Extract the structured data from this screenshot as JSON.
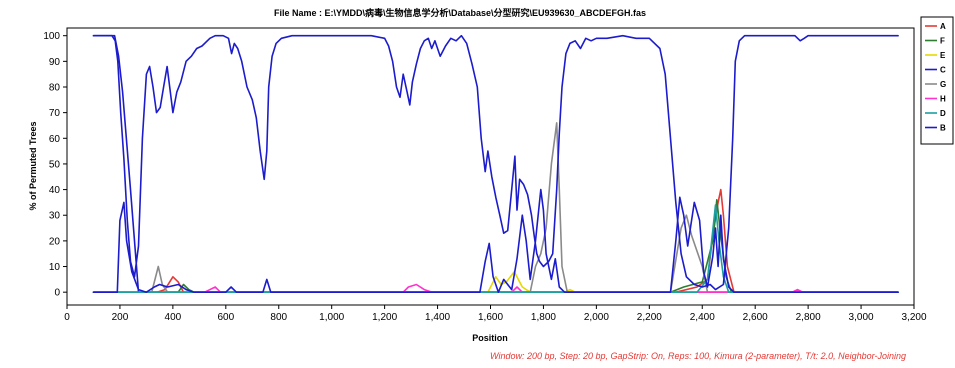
{
  "chart_data": {
    "type": "line",
    "title": "File Name : E:\\YMDD\\病毒\\生物信息学分析\\Database\\分型研究\\EU939630_ABCDEFGH.fas",
    "xlabel": "Position",
    "ylabel": "% of Permuted Trees",
    "footer": "Window: 200 bp, Step: 20 bp, GapStrip: On, Reps: 100, Kimura (2-parameter), T/t: 2.0, Neighbor-Joining",
    "xlim": [
      0,
      3200
    ],
    "ylim": [
      -5,
      103
    ],
    "x_ticks": [
      0,
      200,
      400,
      600,
      800,
      1000,
      1200,
      1400,
      1600,
      1800,
      2000,
      2200,
      2400,
      2600,
      2800,
      3000,
      3200
    ],
    "x_tick_labels": [
      "0",
      "200",
      "400",
      "600",
      "800",
      "1,000",
      "1,200",
      "1,400",
      "1,600",
      "1,800",
      "2,000",
      "2,200",
      "2,400",
      "2,600",
      "2,800",
      "3,000",
      "3,200"
    ],
    "y_ticks": [
      0,
      10,
      20,
      30,
      40,
      50,
      60,
      70,
      80,
      90,
      100
    ],
    "y_tick_labels": [
      "0",
      "10",
      "20",
      "30",
      "40",
      "50",
      "60",
      "70",
      "80",
      "90",
      "100"
    ],
    "legend_position": "right",
    "series": [
      {
        "name": "A",
        "color": "#e53935",
        "points": [
          [
            100,
            0
          ],
          [
            340,
            0
          ],
          [
            370,
            1
          ],
          [
            400,
            6
          ],
          [
            420,
            4
          ],
          [
            440,
            0
          ],
          [
            600,
            0
          ],
          [
            2300,
            0
          ],
          [
            2380,
            2
          ],
          [
            2420,
            5
          ],
          [
            2440,
            22
          ],
          [
            2460,
            35
          ],
          [
            2470,
            40
          ],
          [
            2480,
            30
          ],
          [
            2495,
            10
          ],
          [
            2520,
            0
          ],
          [
            3140,
            0
          ]
        ]
      },
      {
        "name": "F",
        "color": "#2e7d32",
        "points": [
          [
            100,
            0
          ],
          [
            420,
            0
          ],
          [
            440,
            3
          ],
          [
            460,
            1
          ],
          [
            480,
            0
          ],
          [
            2280,
            0
          ],
          [
            2330,
            2
          ],
          [
            2400,
            4
          ],
          [
            2440,
            20
          ],
          [
            2455,
            36
          ],
          [
            2470,
            22
          ],
          [
            2490,
            6
          ],
          [
            2510,
            0
          ],
          [
            3140,
            0
          ]
        ]
      },
      {
        "name": "E",
        "color": "#e6d800",
        "points": [
          [
            100,
            0
          ],
          [
            1590,
            0
          ],
          [
            1620,
            6
          ],
          [
            1640,
            3
          ],
          [
            1660,
            4
          ],
          [
            1690,
            8
          ],
          [
            1720,
            2
          ],
          [
            1750,
            0
          ],
          [
            1880,
            0
          ],
          [
            1900,
            1
          ],
          [
            1920,
            0
          ],
          [
            3140,
            0
          ]
        ]
      },
      {
        "name": "C",
        "color": "#1c1ccc",
        "points": [
          [
            100,
            100
          ],
          [
            180,
            100
          ],
          [
            195,
            92
          ],
          [
            210,
            78
          ],
          [
            240,
            40
          ],
          [
            270,
            0
          ],
          [
            3140,
            0
          ]
        ]
      },
      {
        "name": "G",
        "color": "#8a8a8a",
        "points": [
          [
            100,
            0
          ],
          [
            320,
            0
          ],
          [
            345,
            10
          ],
          [
            360,
            3
          ],
          [
            380,
            0
          ],
          [
            1750,
            0
          ],
          [
            1770,
            10
          ],
          [
            1790,
            15
          ],
          [
            1810,
            25
          ],
          [
            1830,
            50
          ],
          [
            1850,
            66
          ],
          [
            1860,
            40
          ],
          [
            1870,
            10
          ],
          [
            1890,
            0
          ],
          [
            2280,
            0
          ],
          [
            2320,
            25
          ],
          [
            2340,
            30
          ],
          [
            2360,
            22
          ],
          [
            2400,
            10
          ],
          [
            2420,
            0
          ],
          [
            3140,
            0
          ]
        ]
      },
      {
        "name": "H",
        "color": "#ff33cc",
        "points": [
          [
            100,
            0
          ],
          [
            520,
            0
          ],
          [
            560,
            2
          ],
          [
            580,
            0
          ],
          [
            1270,
            0
          ],
          [
            1290,
            2
          ],
          [
            1320,
            3
          ],
          [
            1350,
            1
          ],
          [
            1380,
            0
          ],
          [
            1680,
            0
          ],
          [
            1700,
            2
          ],
          [
            1720,
            0
          ],
          [
            2740,
            0
          ],
          [
            2760,
            1
          ],
          [
            2780,
            0
          ],
          [
            3140,
            0
          ]
        ]
      },
      {
        "name": "D",
        "color": "#1e9fa0",
        "points": [
          [
            100,
            0
          ],
          [
            2380,
            0
          ],
          [
            2420,
            5
          ],
          [
            2450,
            34
          ],
          [
            2465,
            18
          ],
          [
            2480,
            6
          ],
          [
            2500,
            0
          ],
          [
            3140,
            0
          ]
        ]
      },
      {
        "name": "B",
        "color": "#1c1ccc",
        "points": [
          [
            100,
            0
          ],
          [
            190,
            0
          ],
          [
            200,
            28
          ],
          [
            215,
            35
          ],
          [
            225,
            20
          ],
          [
            245,
            8
          ],
          [
            270,
            1
          ],
          [
            300,
            0
          ],
          [
            330,
            2
          ],
          [
            350,
            3
          ],
          [
            380,
            2
          ],
          [
            420,
            3
          ],
          [
            450,
            1
          ],
          [
            480,
            0
          ],
          [
            600,
            0
          ],
          [
            620,
            2
          ],
          [
            640,
            0
          ],
          [
            740,
            0
          ],
          [
            755,
            5
          ],
          [
            770,
            0
          ],
          [
            1560,
            0
          ],
          [
            1580,
            12
          ],
          [
            1595,
            19
          ],
          [
            1610,
            6
          ],
          [
            1630,
            0
          ],
          [
            1650,
            5
          ],
          [
            1680,
            1
          ],
          [
            1700,
            13
          ],
          [
            1720,
            30
          ],
          [
            1735,
            20
          ],
          [
            1750,
            5
          ],
          [
            1770,
            20
          ],
          [
            1790,
            40
          ],
          [
            1800,
            32
          ],
          [
            1810,
            15
          ],
          [
            1830,
            5
          ],
          [
            1845,
            13
          ],
          [
            1860,
            2
          ],
          [
            1880,
            0
          ],
          [
            2280,
            0
          ],
          [
            2300,
            20
          ],
          [
            2315,
            37
          ],
          [
            2330,
            30
          ],
          [
            2345,
            18
          ],
          [
            2370,
            35
          ],
          [
            2390,
            28
          ],
          [
            2405,
            8
          ],
          [
            2420,
            2
          ],
          [
            2440,
            14
          ],
          [
            2450,
            25
          ],
          [
            2460,
            10
          ],
          [
            2470,
            30
          ],
          [
            2480,
            13
          ],
          [
            2500,
            2
          ],
          [
            2520,
            0
          ],
          [
            3140,
            0
          ]
        ]
      },
      {
        "name": "",
        "color": "#1c1ccc",
        "points": [
          [
            100,
            100
          ],
          [
            170,
            100
          ],
          [
            182,
            98
          ],
          [
            192,
            90
          ],
          [
            203,
            70
          ],
          [
            215,
            52
          ],
          [
            228,
            28
          ],
          [
            240,
            12
          ],
          [
            255,
            6
          ],
          [
            270,
            18
          ],
          [
            285,
            60
          ],
          [
            300,
            85
          ],
          [
            312,
            88
          ],
          [
            325,
            80
          ],
          [
            338,
            70
          ],
          [
            352,
            72
          ],
          [
            365,
            80
          ],
          [
            378,
            88
          ],
          [
            388,
            80
          ],
          [
            400,
            70
          ],
          [
            415,
            78
          ],
          [
            430,
            82
          ],
          [
            450,
            90
          ],
          [
            470,
            92
          ],
          [
            490,
            95
          ],
          [
            510,
            96
          ],
          [
            540,
            99
          ],
          [
            560,
            100
          ],
          [
            590,
            100
          ],
          [
            610,
            99
          ],
          [
            622,
            93
          ],
          [
            632,
            97
          ],
          [
            645,
            95
          ],
          [
            660,
            90
          ],
          [
            680,
            80
          ],
          [
            700,
            75
          ],
          [
            715,
            68
          ],
          [
            730,
            55
          ],
          [
            745,
            44
          ],
          [
            755,
            55
          ],
          [
            762,
            80
          ],
          [
            775,
            92
          ],
          [
            790,
            97
          ],
          [
            810,
            99
          ],
          [
            850,
            100
          ],
          [
            900,
            100
          ],
          [
            1000,
            100
          ],
          [
            1100,
            100
          ],
          [
            1150,
            100
          ],
          [
            1200,
            99
          ],
          [
            1215,
            96
          ],
          [
            1230,
            90
          ],
          [
            1245,
            80
          ],
          [
            1258,
            76
          ],
          [
            1270,
            85
          ],
          [
            1285,
            78
          ],
          [
            1295,
            73
          ],
          [
            1305,
            82
          ],
          [
            1320,
            89
          ],
          [
            1335,
            95
          ],
          [
            1350,
            98
          ],
          [
            1365,
            99
          ],
          [
            1378,
            95
          ],
          [
            1390,
            98
          ],
          [
            1410,
            92
          ],
          [
            1430,
            96
          ],
          [
            1450,
            99
          ],
          [
            1470,
            98
          ],
          [
            1490,
            100
          ],
          [
            1510,
            97
          ],
          [
            1530,
            89
          ],
          [
            1550,
            80
          ],
          [
            1565,
            60
          ],
          [
            1580,
            47
          ],
          [
            1590,
            55
          ],
          [
            1605,
            45
          ],
          [
            1620,
            37
          ],
          [
            1635,
            30
          ],
          [
            1650,
            23
          ],
          [
            1665,
            24
          ],
          [
            1680,
            40
          ],
          [
            1692,
            53
          ],
          [
            1700,
            32
          ],
          [
            1710,
            44
          ],
          [
            1725,
            42
          ],
          [
            1740,
            38
          ],
          [
            1755,
            30
          ],
          [
            1765,
            22
          ],
          [
            1775,
            15
          ],
          [
            1785,
            12
          ],
          [
            1800,
            10
          ],
          [
            1820,
            12
          ],
          [
            1835,
            15
          ],
          [
            1850,
            40
          ],
          [
            1860,
            62
          ],
          [
            1870,
            80
          ],
          [
            1885,
            93
          ],
          [
            1900,
            97
          ],
          [
            1920,
            98
          ],
          [
            1940,
            95
          ],
          [
            1960,
            99
          ],
          [
            1980,
            98
          ],
          [
            2000,
            99
          ],
          [
            2040,
            99
          ],
          [
            2100,
            100
          ],
          [
            2150,
            99
          ],
          [
            2200,
            99
          ],
          [
            2240,
            95
          ],
          [
            2260,
            85
          ],
          [
            2280,
            60
          ],
          [
            2300,
            35
          ],
          [
            2320,
            15
          ],
          [
            2340,
            6
          ],
          [
            2370,
            3
          ],
          [
            2400,
            2
          ],
          [
            2430,
            3
          ],
          [
            2450,
            1
          ],
          [
            2480,
            3
          ],
          [
            2500,
            25
          ],
          [
            2515,
            60
          ],
          [
            2525,
            90
          ],
          [
            2540,
            98
          ],
          [
            2560,
            100
          ],
          [
            2600,
            100
          ],
          [
            2700,
            100
          ],
          [
            2750,
            100
          ],
          [
            2770,
            98
          ],
          [
            2785,
            99
          ],
          [
            2800,
            100
          ],
          [
            3000,
            100
          ],
          [
            3140,
            100
          ]
        ]
      }
    ]
  }
}
